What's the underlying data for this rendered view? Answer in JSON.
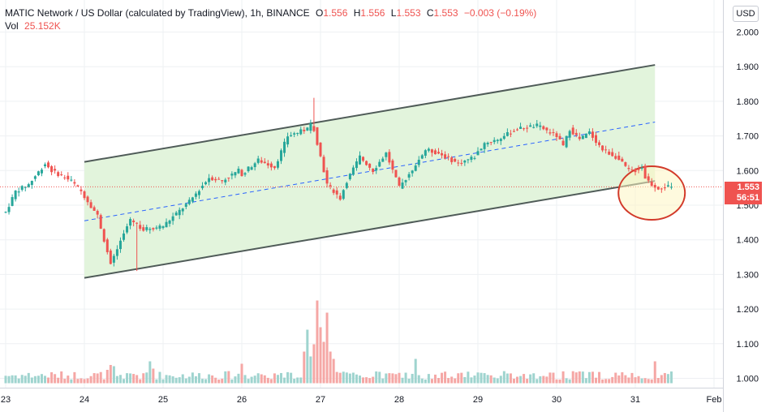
{
  "header": {
    "symbol": "MATIC Network / US Dollar (calculated by TradingView), 1h, BINANCE",
    "o_label": "O",
    "o": "1.556",
    "h_label": "H",
    "h": "1.556",
    "l_label": "L",
    "l": "1.553",
    "c_label": "C",
    "c": "1.553",
    "change": "−0.003 (−0.19%)",
    "vol_label": "Vol",
    "vol": "25.152K"
  },
  "currency_button": "USD",
  "current_price": {
    "price": "1.553",
    "countdown": "56:51"
  },
  "colors": {
    "up": "#26a69a",
    "down": "#ef5350",
    "vol_up": "#9fd4cf",
    "vol_down": "#f5a7a5",
    "channel_fill": "#e2f4dc",
    "channel_line": "#4f5b58",
    "midline": "#2962ff",
    "highlight_circle": "#d23a2a",
    "highlight_fill": "#fdf6c3"
  },
  "chart_data": {
    "type": "candlestick",
    "title": "MATIC Network / US Dollar (calculated by TradingView), 1h, BINANCE",
    "x_tick_labels": [
      "23",
      "24",
      "25",
      "26",
      "27",
      "28",
      "29",
      "30",
      "31",
      "Feb"
    ],
    "y_tick_labels": [
      "1.000",
      "1.100",
      "1.200",
      "1.300",
      "1.400",
      "1.500",
      "1.600",
      "1.700",
      "1.800",
      "1.900",
      "2.000"
    ],
    "price_axis_range": [
      1.0,
      2.0
    ],
    "day_start_hours": [
      0,
      24,
      48,
      72,
      96,
      120,
      144,
      168,
      192,
      216
    ],
    "price_path_hours": [
      0,
      3,
      7,
      12,
      14,
      20,
      23,
      28,
      32,
      38,
      42,
      48,
      56,
      62,
      66,
      71,
      72,
      77,
      82,
      86,
      92,
      93.5,
      96,
      98,
      102,
      104,
      108,
      112,
      116,
      120,
      123,
      128,
      132,
      138,
      143,
      146,
      150,
      156,
      162,
      168,
      170,
      172,
      175,
      178,
      182,
      186,
      190,
      192,
      194,
      195,
      197,
      199,
      203
    ],
    "price_path_values": [
      1.48,
      1.54,
      1.56,
      1.62,
      1.6,
      1.57,
      1.54,
      1.47,
      1.33,
      1.46,
      1.43,
      1.44,
      1.51,
      1.58,
      1.57,
      1.6,
      1.59,
      1.63,
      1.61,
      1.7,
      1.72,
      1.74,
      1.64,
      1.56,
      1.52,
      1.57,
      1.64,
      1.6,
      1.65,
      1.55,
      1.59,
      1.66,
      1.65,
      1.62,
      1.64,
      1.68,
      1.69,
      1.72,
      1.73,
      1.7,
      1.67,
      1.72,
      1.69,
      1.71,
      1.66,
      1.64,
      1.6,
      1.6,
      1.61,
      1.58,
      1.56,
      1.55,
      1.555
    ],
    "wick_spikes": [
      {
        "hour": 93.5,
        "high": 1.81
      },
      {
        "hour": 40,
        "low": 1.31
      }
    ],
    "volume_spike_hours": [
      31,
      32,
      33,
      44,
      45,
      72,
      91,
      92,
      93,
      94,
      95,
      96,
      97,
      98,
      99,
      100,
      125,
      198
    ],
    "volume_spike_values": [
      0.55,
      0.75,
      0.7,
      0.9,
      0.6,
      0.8,
      1.3,
      2.2,
      1.1,
      1.6,
      3.4,
      2.3,
      1.7,
      2.9,
      1.3,
      1.0,
      1.0,
      0.9
    ],
    "channel": {
      "upper": {
        "start_hour": 0,
        "start_price": 1.625,
        "end_hour": 174,
        "end_price": 1.905
      },
      "lower": {
        "start_hour": 0,
        "start_price": 1.29,
        "end_hour": 174,
        "end_price": 1.57
      },
      "middle": {
        "start_hour": 0,
        "start_price": 1.455,
        "end_hour": 174,
        "end_price": 1.74
      }
    },
    "last_price_line": 1.553,
    "grid": true
  }
}
